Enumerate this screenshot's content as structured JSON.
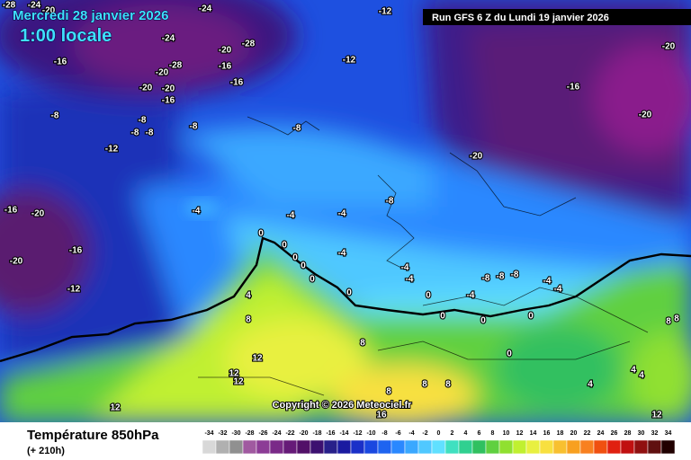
{
  "header": {
    "date": "Mercredi 28 janvier 2026",
    "time": "1:00 locale",
    "run": "Run GFS 6 Z du Lundi 19 janvier 2026"
  },
  "copyright": "Copyright © 2026 Meteociel.fr",
  "contour_labels": [
    -28,
    -24,
    -20,
    -12,
    -24,
    -24,
    -20,
    -28,
    -16,
    -20,
    -28,
    -16,
    -12,
    -20,
    -20,
    -16,
    -16,
    -16,
    -20,
    -20,
    -20,
    -8,
    -8,
    -8,
    -8,
    -8,
    -8,
    -12,
    -16,
    -20,
    -16,
    -20,
    -12,
    -4,
    -4,
    -4,
    -8,
    -4,
    0,
    0,
    0,
    0,
    0,
    0,
    4,
    8,
    -4,
    -4,
    0,
    -4,
    -8,
    -8,
    -8,
    -4,
    -4,
    0,
    0,
    0,
    8,
    12,
    12,
    12,
    8,
    8,
    8,
    12,
    16,
    4,
    4,
    8,
    8,
    12,
    0,
    4
  ],
  "legend": {
    "title": "Température 850hPa",
    "subtitle": "(+ 210h)",
    "scale": [
      {
        "value": -34,
        "color": "#d8d8d8"
      },
      {
        "value": -32,
        "color": "#b0b0b0"
      },
      {
        "value": -30,
        "color": "#909090"
      },
      {
        "value": -28,
        "color": "#a05aa0"
      },
      {
        "value": -26,
        "color": "#8c3c96"
      },
      {
        "value": -24,
        "color": "#7a2a88"
      },
      {
        "value": -22,
        "color": "#661a78"
      },
      {
        "value": -20,
        "color": "#521068"
      },
      {
        "value": -18,
        "color": "#3c1070"
      },
      {
        "value": -16,
        "color": "#28208a"
      },
      {
        "value": -14,
        "color": "#1a1aa0"
      },
      {
        "value": -12,
        "color": "#1a30c8"
      },
      {
        "value": -10,
        "color": "#1a48e0"
      },
      {
        "value": -8,
        "color": "#1e64f0"
      },
      {
        "value": -6,
        "color": "#2a88ff"
      },
      {
        "value": -4,
        "color": "#3aa8ff"
      },
      {
        "value": -2,
        "color": "#50c8ff"
      },
      {
        "value": 0,
        "color": "#60e0ff"
      },
      {
        "value": 2,
        "color": "#40e0c0"
      },
      {
        "value": 4,
        "color": "#30d090"
      },
      {
        "value": 6,
        "color": "#30c060"
      },
      {
        "value": 8,
        "color": "#60d040"
      },
      {
        "value": 10,
        "color": "#90e030"
      },
      {
        "value": 12,
        "color": "#c0f030"
      },
      {
        "value": 14,
        "color": "#e8f040"
      },
      {
        "value": 16,
        "color": "#f8e040"
      },
      {
        "value": 18,
        "color": "#f8c030"
      },
      {
        "value": 20,
        "color": "#f8a020"
      },
      {
        "value": 22,
        "color": "#f88020"
      },
      {
        "value": 24,
        "color": "#f05010"
      },
      {
        "value": 26,
        "color": "#e02010"
      },
      {
        "value": 28,
        "color": "#c01010"
      },
      {
        "value": 30,
        "color": "#901010"
      },
      {
        "value": 32,
        "color": "#601010"
      },
      {
        "value": 34,
        "color": "#200000"
      }
    ]
  }
}
